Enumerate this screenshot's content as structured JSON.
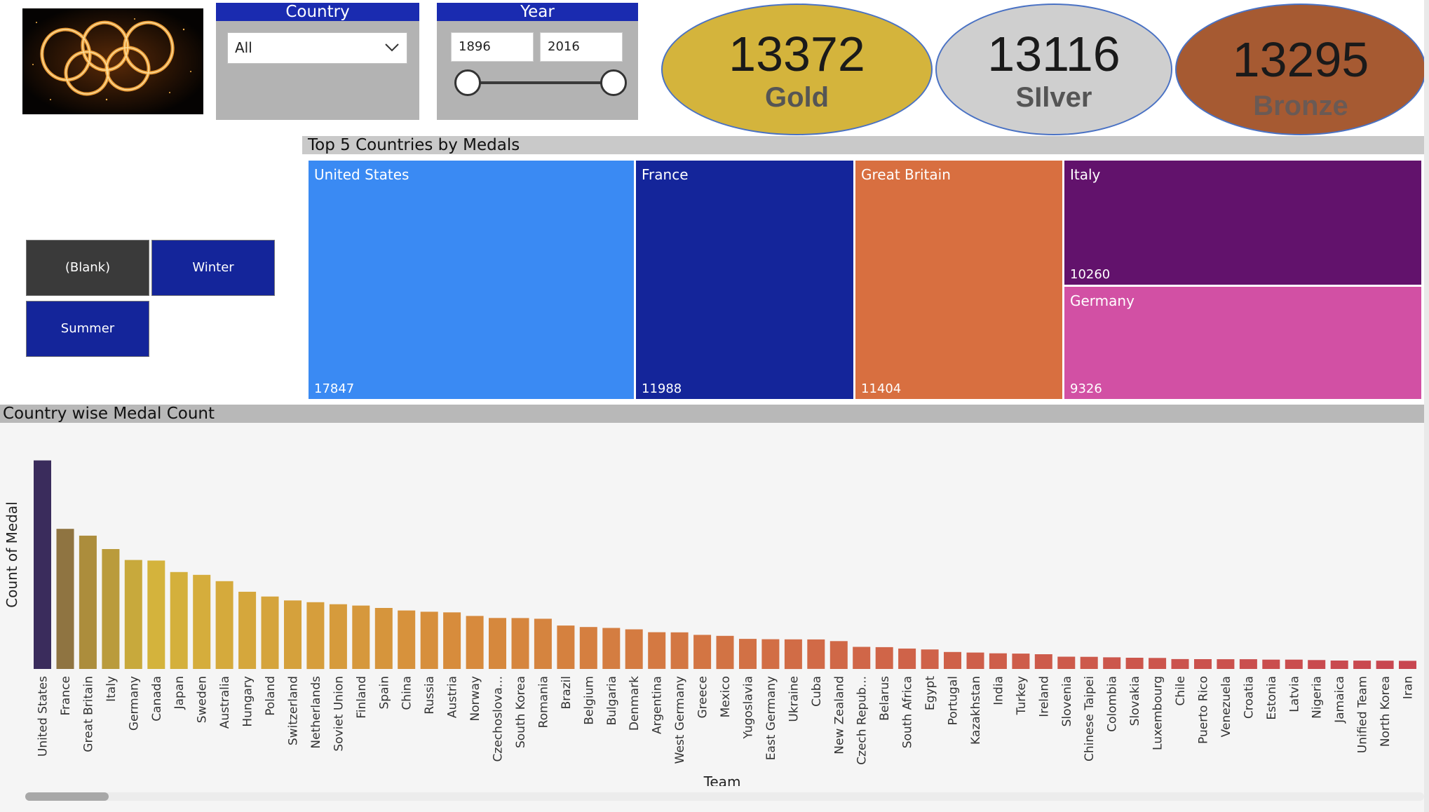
{
  "country_slicer": {
    "title": "Country",
    "value": "All"
  },
  "year_slicer": {
    "title": "Year",
    "start": "1896",
    "end": "2016"
  },
  "kpis": {
    "gold": {
      "value": "13372",
      "label": "Gold",
      "color": "#d4b43c"
    },
    "silver": {
      "value": "13116",
      "label": "SIlver",
      "color": "#cfcfcf"
    },
    "bronze": {
      "value": "13295",
      "label": "Bronze",
      "color": "#a65a32"
    }
  },
  "season_buttons": [
    "(Blank)",
    "Winter",
    "Summer"
  ],
  "treemap": {
    "title": "Top 5 Countries by Medals",
    "tiles": [
      {
        "name": "United States",
        "value": "17847",
        "color": "#3a8af3"
      },
      {
        "name": "France",
        "value": "11988",
        "color": "#14259a"
      },
      {
        "name": "Great Britain",
        "value": "11404",
        "color": "#d86f40"
      },
      {
        "name": "Italy",
        "value": "10260",
        "color": "#62126c"
      },
      {
        "name": "Germany",
        "value": "9326",
        "color": "#d250a4"
      }
    ]
  },
  "bar_chart": {
    "title": "Country wise Medal Count",
    "xlabel": "Team",
    "ylabel": "Count of Medal"
  },
  "chart_data": {
    "type": "bar",
    "title": "Country wise Medal Count",
    "xlabel": "Team",
    "ylabel": "Count of Medal",
    "ylim": [
      0,
      18000
    ],
    "categories": [
      "United States",
      "France",
      "Great Britain",
      "Italy",
      "Germany",
      "Canada",
      "Japan",
      "Sweden",
      "Australia",
      "Hungary",
      "Poland",
      "Switzerland",
      "Netherlands",
      "Soviet Union",
      "Finland",
      "Spain",
      "China",
      "Russia",
      "Austria",
      "Norway",
      "Czechoslova...",
      "South Korea",
      "Romania",
      "Brazil",
      "Belgium",
      "Bulgaria",
      "Denmark",
      "Argentina",
      "West Germany",
      "Greece",
      "Mexico",
      "Yugoslavia",
      "East Germany",
      "Ukraine",
      "Cuba",
      "New Zealand",
      "Czech Repub...",
      "Belarus",
      "South Africa",
      "Egypt",
      "Portugal",
      "Kazakhstan",
      "India",
      "Turkey",
      "Ireland",
      "Slovenia",
      "Chinese Taipei",
      "Colombia",
      "Slovakia",
      "Luxembourg",
      "Chile",
      "Puerto Rico",
      "Venezuela",
      "Croatia",
      "Estonia",
      "Latvia",
      "Nigeria",
      "Jamaica",
      "Unified Team",
      "North Korea",
      "Iran"
    ],
    "values": [
      17847,
      11988,
      11404,
      10260,
      9326,
      9279,
      8289,
      8052,
      7513,
      6607,
      6200,
      5865,
      5715,
      5539,
      5426,
      5218,
      5002,
      4894,
      4844,
      4533,
      4360,
      4353,
      4297,
      3713,
      3590,
      3511,
      3391,
      3141,
      3131,
      2916,
      2835,
      2574,
      2546,
      2535,
      2523,
      2383,
      1890,
      1864,
      1749,
      1666,
      1450,
      1406,
      1340,
      1313,
      1258,
      1050,
      1037,
      997,
      961,
      943,
      847,
      842,
      835,
      833,
      799,
      797,
      764,
      720,
      716,
      709,
      693
    ]
  }
}
